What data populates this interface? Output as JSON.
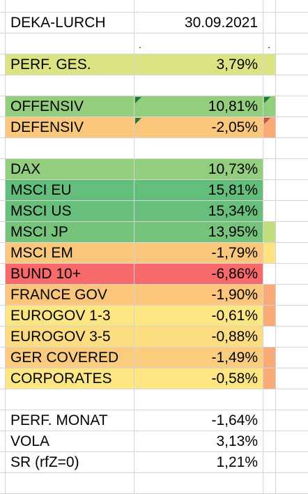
{
  "rows": [
    {
      "label": "DEKA-LURCH",
      "value": "30.09.2021",
      "value_bg": "#ffffff",
      "label_bg": "#ffffff",
      "c3": "#ffffff",
      "corner": false
    },
    {
      "label": "",
      "value": "",
      "dots": true,
      "value_bg": "#ffffff",
      "label_bg": "#ffffff",
      "c3": "#ffffff",
      "corner": false
    },
    {
      "label": "PERF. GES.",
      "value": "3,79%",
      "value_bg": "#dbe382",
      "label_bg": "#dbe382",
      "c3": "#dbe382",
      "corner": false
    },
    {
      "label": "",
      "value": "",
      "value_bg": "#ffffff",
      "label_bg": "#ffffff",
      "c3": "#ffffff",
      "corner": false
    },
    {
      "label": "OFFENSIV",
      "value": "10,81%",
      "value_bg": "#93cd7e",
      "label_bg": "#93cd7e",
      "c3": "#93cd7e",
      "corner": true
    },
    {
      "label": "DEFENSIV",
      "value": "-2,05%",
      "value_bg": "#fbc77c",
      "label_bg": "#fbc77c",
      "c3": "#f8ab77",
      "corner": true
    },
    {
      "label": "",
      "value": "",
      "value_bg": "#ffffff",
      "label_bg": "#ffffff",
      "c3": "#ffffff",
      "corner": false
    },
    {
      "label": "DAX",
      "value": "10,73%",
      "value_bg": "#93cd7e",
      "label_bg": "#93cd7e",
      "c3": "#ffffff",
      "corner": false
    },
    {
      "label": "MSCI EU",
      "value": "15,81%",
      "value_bg": "#63be7b",
      "label_bg": "#63be7b",
      "c3": "#ffffff",
      "corner": false
    },
    {
      "label": "MSCI US",
      "value": "15,34%",
      "value_bg": "#67bf7b",
      "label_bg": "#67bf7b",
      "c3": "#ffffff",
      "corner": false
    },
    {
      "label": "MSCI JP",
      "value": "13,95%",
      "value_bg": "#76c47c",
      "label_bg": "#76c47c",
      "c3": "#c2dd80",
      "corner": false
    },
    {
      "label": "MSCI EM",
      "value": "-1,79%",
      "value_bg": "#fbc77c",
      "label_bg": "#fbc77c",
      "c3": "#fee283",
      "corner": false
    },
    {
      "label": "BUND 10+",
      "value": "-6,86%",
      "value_bg": "#f8696b",
      "label_bg": "#f8696b",
      "c3": "#ffffff",
      "corner": false
    },
    {
      "label": "FRANCE GOV",
      "value": "-1,90%",
      "value_bg": "#fbc57c",
      "label_bg": "#fbc57c",
      "c3": "#f8ab77",
      "corner": false
    },
    {
      "label": "EUROGOV 1-3",
      "value": "-0,61%",
      "value_bg": "#fee683",
      "label_bg": "#fee683",
      "c3": "#f8ab77",
      "corner": false
    },
    {
      "label": "EUROGOV 3-5",
      "value": "-0,88%",
      "value_bg": "#fedd81",
      "label_bg": "#fedd81",
      "c3": "#ffffff",
      "corner": false
    },
    {
      "label": "GER COVERED",
      "value": "-1,49%",
      "value_bg": "#fccc7e",
      "label_bg": "#fccc7e",
      "c3": "#f8ab77",
      "corner": false
    },
    {
      "label": "CORPORATES",
      "value": "-0,58%",
      "value_bg": "#fee683",
      "label_bg": "#fee683",
      "c3": "#f8ab77",
      "corner": false
    },
    {
      "label": "",
      "value": "",
      "value_bg": "#ffffff",
      "label_bg": "#ffffff",
      "c3": "#ffffff",
      "corner": false
    },
    {
      "label": "PERF. MONAT",
      "value": "-1,64%",
      "value_bg": "#ffffff",
      "label_bg": "#ffffff",
      "c3": "#ffffff",
      "corner": false
    },
    {
      "label": "VOLA",
      "value": "3,13%",
      "value_bg": "#ffffff",
      "label_bg": "#ffffff",
      "c3": "#ffffff",
      "corner": false
    },
    {
      "label": "SR (rfZ=0)",
      "value": "1,21%",
      "value_bg": "#ffffff",
      "label_bg": "#ffffff",
      "c3": "#ffffff",
      "corner": false
    },
    {
      "label": "",
      "value": "",
      "value_bg": "#ffffff",
      "label_bg": "#ffffff",
      "c3": "#ffffff",
      "corner": false
    }
  ],
  "dot_char": "."
}
